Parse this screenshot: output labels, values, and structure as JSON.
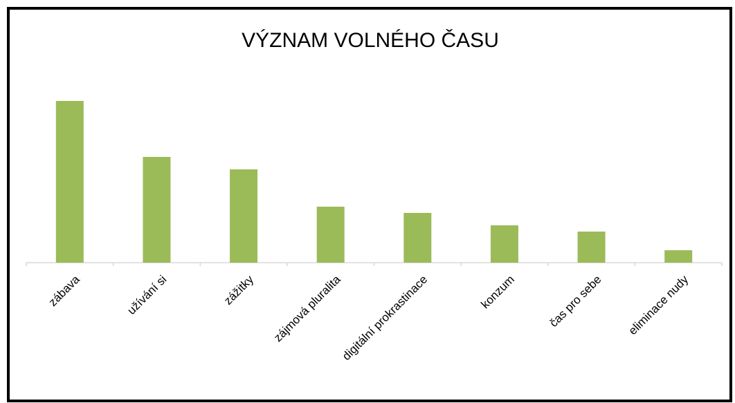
{
  "chart_data": {
    "type": "bar",
    "title": "VÝZNAM VOLNÉHO ČASU",
    "categories": [
      "zábava",
      "užívání si",
      "zážitky",
      "zájmová pluralita",
      "digitální prokrastinace",
      "konzum",
      "čas pro sebe",
      "eliminace nudy"
    ],
    "values": [
      26,
      17,
      15,
      9,
      8,
      6,
      5,
      2
    ],
    "color": "#9bbb59",
    "ylim": [
      0,
      26
    ]
  }
}
